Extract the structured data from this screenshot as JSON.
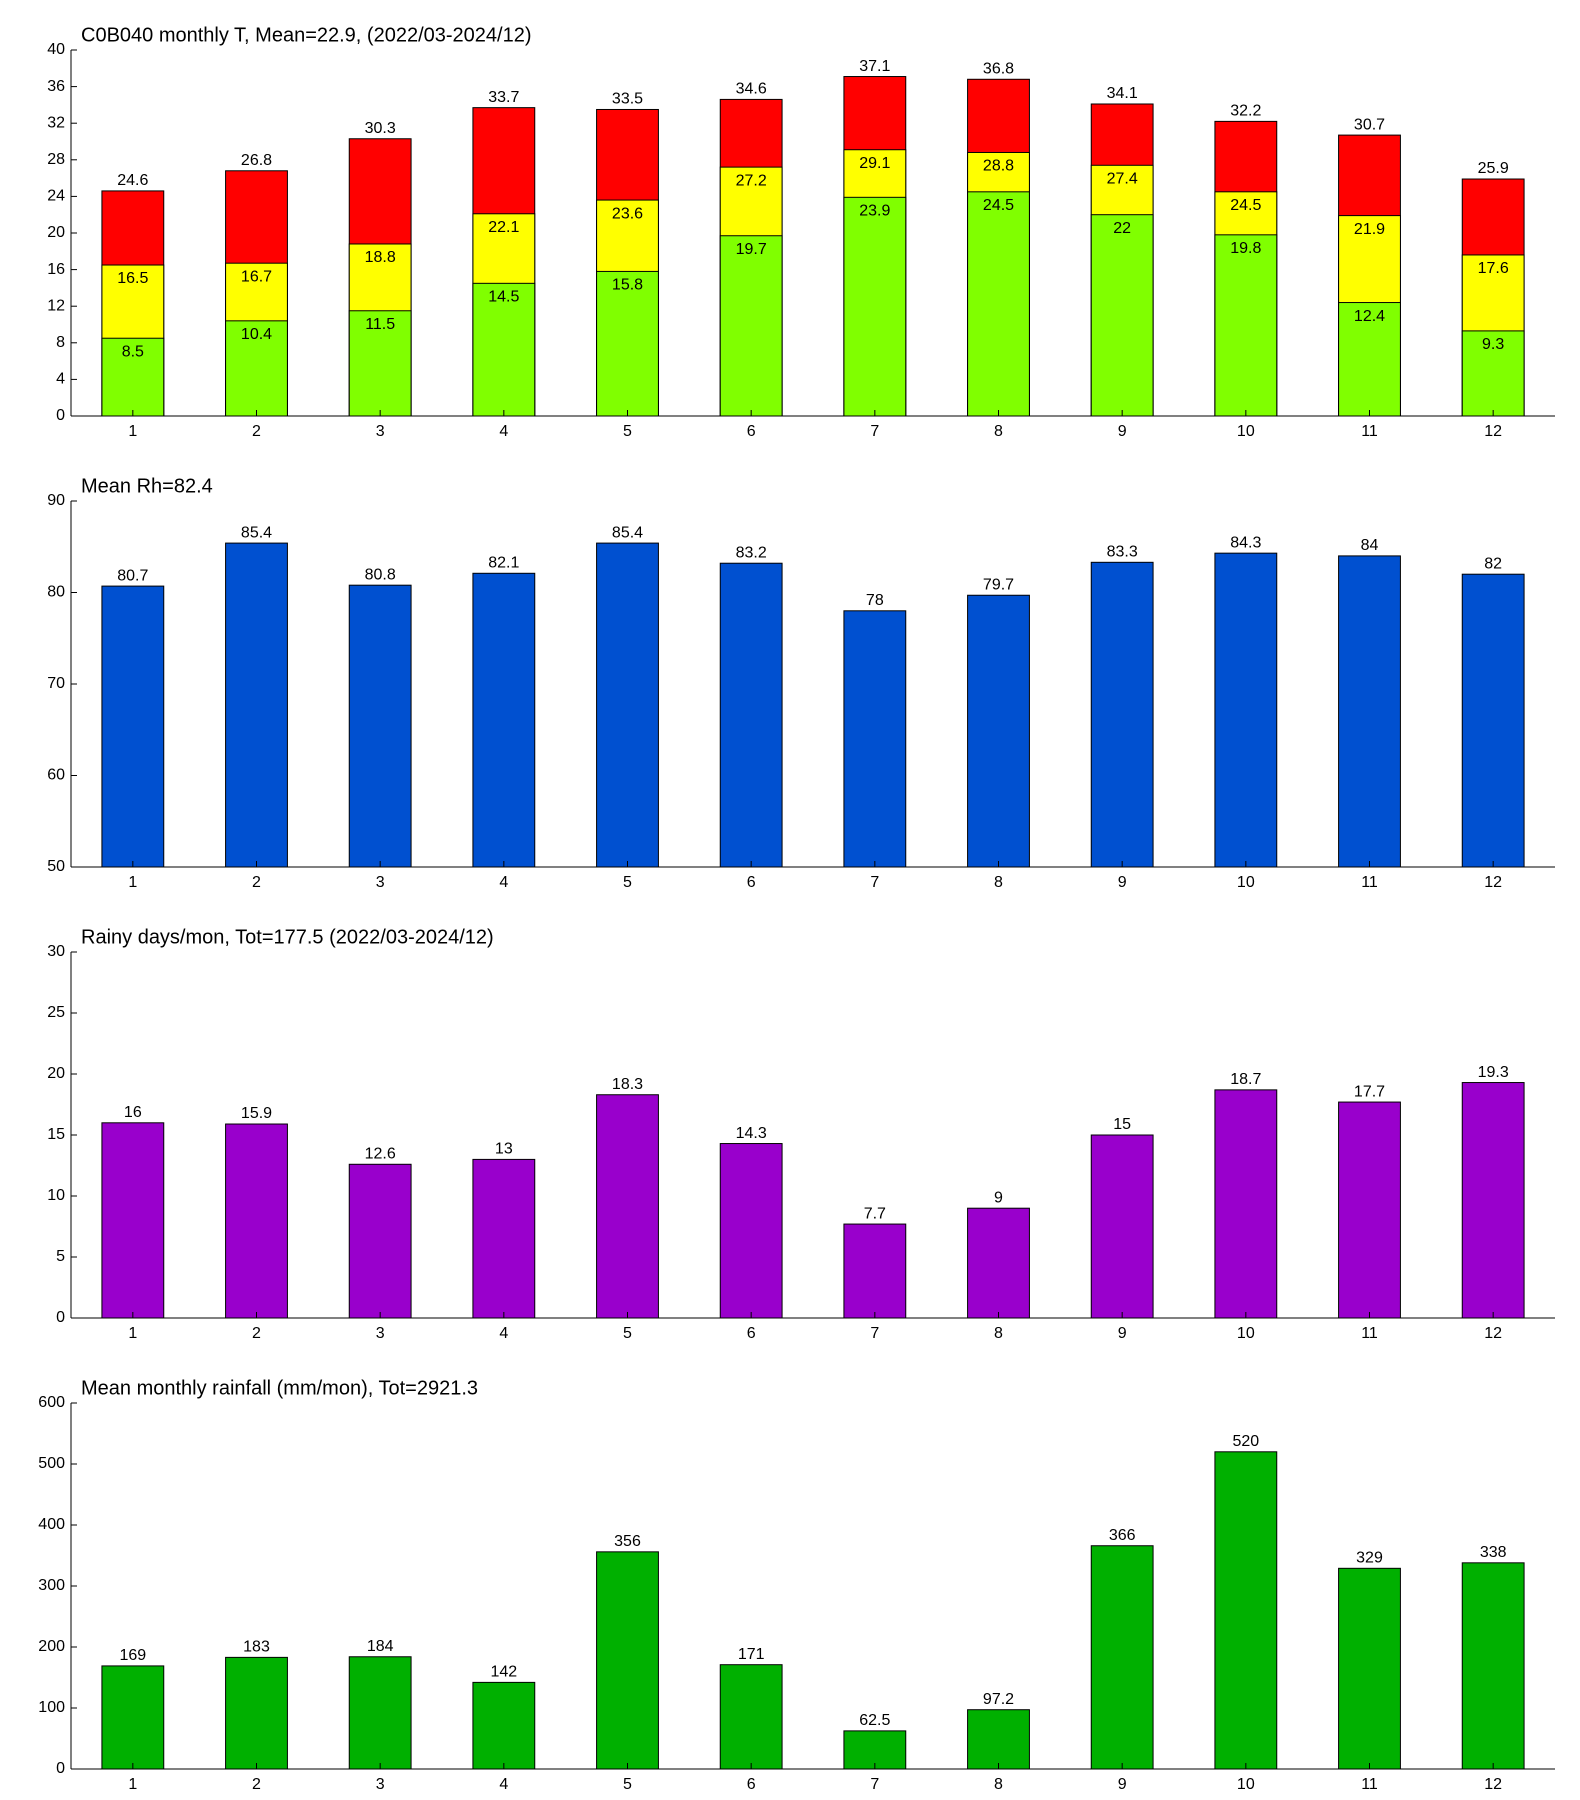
{
  "chart_data": [
    {
      "type": "bar",
      "barmode": "overlay",
      "title": "C0B040 monthly T, Mean=22.9, (2022/03-2024/12)",
      "categories": [
        1,
        2,
        3,
        4,
        5,
        6,
        7,
        8,
        9,
        10,
        11,
        12
      ],
      "series": [
        {
          "color": "#ff0000",
          "label_position": "above",
          "values": [
            24.6,
            26.8,
            30.3,
            33.7,
            33.5,
            34.6,
            37.1,
            36.8,
            34.1,
            32.2,
            30.7,
            25.9
          ]
        },
        {
          "color": "#ffff00",
          "label_position": "inside",
          "values": [
            16.5,
            16.7,
            18.8,
            22.1,
            23.6,
            27.2,
            29.1,
            28.8,
            27.4,
            24.5,
            21.9,
            17.6
          ]
        },
        {
          "color": "#80ff00",
          "label_position": "inside",
          "values": [
            8.5,
            10.4,
            11.5,
            14.5,
            15.8,
            19.7,
            23.9,
            24.5,
            22,
            19.8,
            12.4,
            9.3
          ]
        }
      ],
      "ylim": [
        0,
        40
      ],
      "yticks": [
        0,
        4,
        8,
        12,
        16,
        20,
        24,
        28,
        32,
        36,
        40
      ]
    },
    {
      "type": "bar",
      "title": "Mean Rh=82.4",
      "categories": [
        1,
        2,
        3,
        4,
        5,
        6,
        7,
        8,
        9,
        10,
        11,
        12
      ],
      "series": [
        {
          "color": "#0050d0",
          "label_position": "above",
          "values": [
            80.7,
            85.4,
            80.8,
            82.1,
            85.4,
            83.2,
            78,
            79.7,
            83.3,
            84.3,
            84,
            82
          ]
        }
      ],
      "ylim": [
        50,
        90
      ],
      "yticks": [
        50,
        60,
        70,
        80,
        90
      ]
    },
    {
      "type": "bar",
      "title": "Rainy days/mon, Tot=177.5 (2022/03-2024/12)",
      "categories": [
        1,
        2,
        3,
        4,
        5,
        6,
        7,
        8,
        9,
        10,
        11,
        12
      ],
      "series": [
        {
          "color": "#9900cc",
          "label_position": "above",
          "values": [
            16,
            15.9,
            12.6,
            13,
            18.3,
            14.3,
            7.7,
            9,
            15,
            18.7,
            17.7,
            19.3
          ]
        }
      ],
      "ylim": [
        0,
        30
      ],
      "yticks": [
        0,
        5,
        10,
        15,
        20,
        25,
        30
      ]
    },
    {
      "type": "bar",
      "title": "Mean monthly rainfall (mm/mon), Tot=2921.3",
      "categories": [
        1,
        2,
        3,
        4,
        5,
        6,
        7,
        8,
        9,
        10,
        11,
        12
      ],
      "series": [
        {
          "color": "#00b000",
          "label_position": "above",
          "values": [
            169,
            183,
            184,
            142,
            356,
            171,
            62.5,
            97.2,
            366,
            520,
            329,
            338
          ]
        }
      ],
      "ylim": [
        0,
        600
      ],
      "yticks": [
        0,
        100,
        200,
        300,
        400,
        500,
        600
      ]
    }
  ]
}
